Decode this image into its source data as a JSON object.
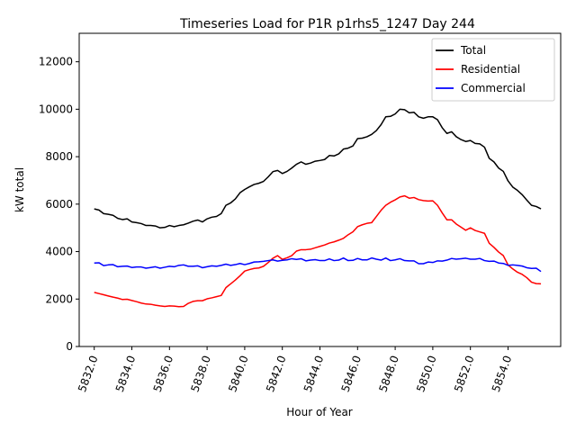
{
  "chart_data": {
    "type": "line",
    "title": "Timeseries Load for P1R p1rhs5_1247  Day 244",
    "xlabel": "Hour of Year",
    "ylabel": "kW total",
    "xlim": [
      5831.2,
      5856.8
    ],
    "ylim": [
      0,
      13200
    ],
    "grid": false,
    "legend_position": "top-right",
    "x_ticks": [
      5832,
      5834,
      5836,
      5838,
      5840,
      5842,
      5844,
      5846,
      5848,
      5850,
      5852,
      5854
    ],
    "x_tick_labels": [
      "5832.0",
      "5834.0",
      "5836.0",
      "5838.0",
      "5840.0",
      "5842.0",
      "5844.0",
      "5846.0",
      "5848.0",
      "5850.0",
      "5852.0",
      "5854.0"
    ],
    "y_ticks": [
      0,
      2000,
      4000,
      6000,
      8000,
      10000,
      12000
    ],
    "y_tick_labels": [
      "0",
      "2000",
      "4000",
      "6000",
      "8000",
      "10000",
      "12000"
    ],
    "x_start": 5832,
    "x_step": 0.25,
    "series": [
      {
        "name": "Total",
        "color": "#000000",
        "values": [
          5800,
          5750,
          5600,
          5570,
          5530,
          5400,
          5350,
          5380,
          5250,
          5220,
          5180,
          5100,
          5100,
          5080,
          5000,
          5020,
          5100,
          5050,
          5100,
          5130,
          5200,
          5280,
          5330,
          5250,
          5380,
          5450,
          5480,
          5600,
          5950,
          6050,
          6220,
          6480,
          6620,
          6730,
          6830,
          6880,
          6960,
          7150,
          7370,
          7420,
          7290,
          7380,
          7520,
          7680,
          7780,
          7680,
          7730,
          7810,
          7840,
          7880,
          8050,
          8030,
          8120,
          8320,
          8360,
          8450,
          8760,
          8780,
          8840,
          8940,
          9100,
          9350,
          9680,
          9700,
          9800,
          10000,
          9980,
          9850,
          9870,
          9680,
          9620,
          9680,
          9680,
          9560,
          9220,
          8980,
          9050,
          8840,
          8720,
          8640,
          8680,
          8560,
          8540,
          8400,
          7930,
          7780,
          7520,
          7380,
          6980,
          6720,
          6580,
          6400,
          6170,
          5950,
          5900,
          5800
        ]
      },
      {
        "name": "Residential",
        "color": "#ff0000",
        "values": [
          2280,
          2230,
          2180,
          2130,
          2080,
          2040,
          1980,
          1990,
          1940,
          1890,
          1830,
          1790,
          1780,
          1740,
          1710,
          1690,
          1710,
          1700,
          1680,
          1690,
          1820,
          1900,
          1930,
          1930,
          2010,
          2050,
          2100,
          2150,
          2480,
          2640,
          2800,
          2980,
          3180,
          3240,
          3290,
          3310,
          3380,
          3540,
          3720,
          3830,
          3670,
          3740,
          3830,
          4020,
          4080,
          4080,
          4100,
          4160,
          4220,
          4280,
          4360,
          4410,
          4480,
          4560,
          4710,
          4830,
          5050,
          5130,
          5190,
          5220,
          5480,
          5740,
          5950,
          6080,
          6180,
          6300,
          6350,
          6250,
          6280,
          6190,
          6150,
          6130,
          6140,
          5950,
          5630,
          5340,
          5340,
          5160,
          5030,
          4900,
          5000,
          4890,
          4830,
          4770,
          4350,
          4180,
          3980,
          3830,
          3440,
          3270,
          3130,
          3040,
          2900,
          2710,
          2650,
          2640
        ]
      },
      {
        "name": "Commercial",
        "color": "#0000ff",
        "values": [
          3520,
          3530,
          3410,
          3440,
          3450,
          3360,
          3380,
          3390,
          3330,
          3350,
          3350,
          3300,
          3330,
          3360,
          3300,
          3340,
          3380,
          3360,
          3420,
          3440,
          3380,
          3380,
          3400,
          3320,
          3360,
          3400,
          3380,
          3420,
          3470,
          3420,
          3450,
          3500,
          3450,
          3500,
          3560,
          3570,
          3590,
          3620,
          3650,
          3600,
          3630,
          3650,
          3700,
          3670,
          3700,
          3610,
          3640,
          3660,
          3620,
          3620,
          3690,
          3620,
          3640,
          3730,
          3620,
          3630,
          3710,
          3650,
          3650,
          3730,
          3680,
          3640,
          3730,
          3620,
          3650,
          3700,
          3620,
          3610,
          3610,
          3490,
          3490,
          3560,
          3540,
          3610,
          3600,
          3640,
          3710,
          3680,
          3700,
          3720,
          3680,
          3680,
          3710,
          3620,
          3590,
          3600,
          3520,
          3500,
          3420,
          3440,
          3420,
          3390,
          3320,
          3290,
          3300,
          3160
        ]
      }
    ]
  }
}
